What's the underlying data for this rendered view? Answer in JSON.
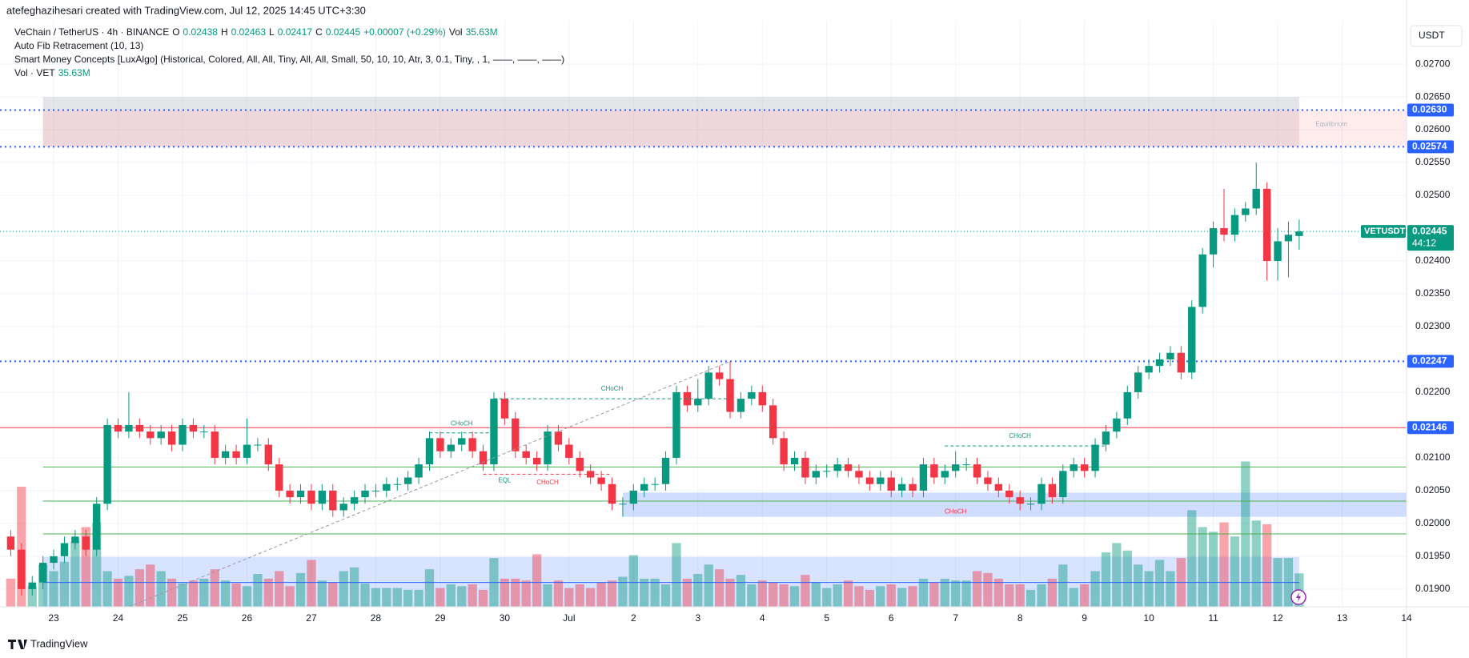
{
  "chart_data": {
    "type": "candlestick",
    "watermark": "atefeghazihesari created with TradingView.com, Jul 12, 2025 14:45 UTC+3:30",
    "legend": [
      {
        "text": "VeChain / TetherUS · 4h · BINANCE",
        "color": "#131722"
      },
      {
        "text": "O",
        "color": "#131722"
      },
      {
        "text": "0.02438",
        "color": "#089981"
      },
      {
        "text": "H",
        "color": "#131722"
      },
      {
        "text": "0.02463",
        "color": "#089981"
      },
      {
        "text": "L",
        "color": "#131722"
      },
      {
        "text": "0.02417",
        "color": "#089981"
      },
      {
        "text": "C",
        "color": "#131722"
      },
      {
        "text": "0.02445",
        "color": "#089981"
      },
      {
        "text": "+0.00007 (+0.29%)",
        "color": "#089981"
      },
      {
        "text": "Vol",
        "color": "#131722"
      },
      {
        "text": "35.63M",
        "color": "#089981"
      }
    ],
    "indicators": [
      "Auto Fib Retracement (10, 13)",
      "Smart Money Concepts [LuxAlgo] (Historical, Colored, All, All, Tiny, All, All, Small, 50, 10, 10, Atr, 3, 0.1, Tiny, , 1, ——, ——, ——)"
    ],
    "volume_legend": [
      {
        "text": "Vol · VET",
        "color": "#131722"
      },
      {
        "text": "35.63M",
        "color": "#089981"
      }
    ],
    "currency": "USDT",
    "symbol": "VETUSDT",
    "countdown": "44:12",
    "footer": "TradingView",
    "last_price": {
      "value": 0.02445,
      "label": "0.02445",
      "color": "#089981"
    },
    "up_color": "#089981",
    "down_color": "#f23645",
    "volume_up_color": "rgba(8,153,129,0.45)",
    "volume_down_color": "rgba(242,54,69,0.45)",
    "xlim": [
      -1,
      130
    ],
    "ylim": [
      0.01873,
      0.02766
    ],
    "grid": true,
    "xticks": [
      {
        "value": 4,
        "label": "23"
      },
      {
        "value": 10,
        "label": "24"
      },
      {
        "value": 16,
        "label": "25"
      },
      {
        "value": 22,
        "label": "26"
      },
      {
        "value": 28,
        "label": "27"
      },
      {
        "value": 34,
        "label": "28"
      },
      {
        "value": 40,
        "label": "29"
      },
      {
        "value": 46,
        "label": "30"
      },
      {
        "value": 52,
        "label": "Jul"
      },
      {
        "value": 58,
        "label": "2"
      },
      {
        "value": 64,
        "label": "3"
      },
      {
        "value": 70,
        "label": "4"
      },
      {
        "value": 76,
        "label": "5"
      },
      {
        "value": 82,
        "label": "6"
      },
      {
        "value": 88,
        "label": "7"
      },
      {
        "value": 94,
        "label": "8"
      },
      {
        "value": 100,
        "label": "9"
      },
      {
        "value": 106,
        "label": "10"
      },
      {
        "value": 112,
        "label": "11"
      },
      {
        "value": 118,
        "label": "12"
      },
      {
        "value": 124,
        "label": "13"
      },
      {
        "value": 130,
        "label": "14"
      }
    ],
    "yticks": [
      {
        "value": 0.027,
        "label": "0.02700"
      },
      {
        "value": 0.0265,
        "label": "0.02650"
      },
      {
        "value": 0.026,
        "label": "0.02600"
      },
      {
        "value": 0.0255,
        "label": "0.02550"
      },
      {
        "value": 0.025,
        "label": "0.02500"
      },
      {
        "value": 0.024,
        "label": "0.02400"
      },
      {
        "value": 0.0235,
        "label": "0.02350"
      },
      {
        "value": 0.023,
        "label": "0.02300"
      },
      {
        "value": 0.022,
        "label": "0.02200"
      },
      {
        "value": 0.021,
        "label": "0.02100"
      },
      {
        "value": 0.0205,
        "label": "0.02050"
      },
      {
        "value": 0.02,
        "label": "0.02000"
      },
      {
        "value": 0.0195,
        "label": "0.01950"
      },
      {
        "value": 0.019,
        "label": "0.01900"
      }
    ],
    "open": [
      0.0198,
      0.0196,
      0.019,
      0.0191,
      0.0194,
      0.0195,
      0.0197,
      0.0198,
      0.0196,
      0.0203,
      0.0215,
      0.0214,
      0.0215,
      0.0214,
      0.0213,
      0.0214,
      0.0212,
      0.0215,
      0.0214,
      0.0214,
      0.021,
      0.0211,
      0.021,
      0.0212,
      0.0212,
      0.0209,
      0.0205,
      0.0204,
      0.0205,
      0.0203,
      0.0205,
      0.0202,
      0.0203,
      0.0204,
      0.0205,
      0.0205,
      0.0206,
      0.0206,
      0.0207,
      0.0209,
      0.0213,
      0.0211,
      0.0212,
      0.0213,
      0.0211,
      0.0209,
      0.0219,
      0.0216,
      0.0211,
      0.021,
      0.0209,
      0.0214,
      0.0212,
      0.021,
      0.0208,
      0.0207,
      0.0206,
      0.0203,
      0.0203,
      0.0205,
      0.0206,
      0.0206,
      0.021,
      0.022,
      0.0218,
      0.0219,
      0.0223,
      0.0222,
      0.0217,
      0.0219,
      0.022,
      0.0218,
      0.0213,
      0.0209,
      0.021,
      0.0207,
      0.0208,
      0.0208,
      0.0209,
      0.0208,
      0.0207,
      0.0206,
      0.0207,
      0.0205,
      0.0206,
      0.0205,
      0.0209,
      0.0207,
      0.0208,
      0.0209,
      0.0209,
      0.0207,
      0.0206,
      0.0205,
      0.0204,
      0.0203,
      0.0203,
      0.0206,
      0.0204,
      0.0208,
      0.0209,
      0.0208,
      0.0212,
      0.0214,
      0.0216,
      0.022,
      0.0223,
      0.0224,
      0.0225,
      0.0226,
      0.0223,
      0.0233,
      0.0241,
      0.0245,
      0.0244,
      0.0247,
      0.0248,
      0.0251,
      0.024,
      0.0243,
      0.02438
    ],
    "high": [
      0.0199,
      0.0197,
      0.0192,
      0.0195,
      0.0196,
      0.0198,
      0.0199,
      0.0199,
      0.0204,
      0.0216,
      0.0216,
      0.022,
      0.0216,
      0.0215,
      0.0215,
      0.0215,
      0.0216,
      0.0216,
      0.0215,
      0.0215,
      0.0212,
      0.0212,
      0.0216,
      0.0213,
      0.0213,
      0.021,
      0.0206,
      0.0206,
      0.0206,
      0.0206,
      0.0206,
      0.0204,
      0.0205,
      0.0206,
      0.0206,
      0.0207,
      0.0207,
      0.0208,
      0.021,
      0.0214,
      0.0214,
      0.0213,
      0.0214,
      0.0214,
      0.0212,
      0.022,
      0.022,
      0.0217,
      0.0212,
      0.0211,
      0.0215,
      0.0215,
      0.0213,
      0.0211,
      0.0209,
      0.0208,
      0.0207,
      0.0204,
      0.0206,
      0.0207,
      0.0207,
      0.0211,
      0.0221,
      0.0221,
      0.0222,
      0.0224,
      0.0224,
      0.02247,
      0.022,
      0.0221,
      0.0221,
      0.0219,
      0.0214,
      0.0211,
      0.0211,
      0.0209,
      0.0209,
      0.021,
      0.021,
      0.0209,
      0.0208,
      0.0208,
      0.0208,
      0.0207,
      0.0207,
      0.021,
      0.021,
      0.0209,
      0.0211,
      0.021,
      0.021,
      0.0208,
      0.0207,
      0.0206,
      0.0205,
      0.0204,
      0.0207,
      0.0207,
      0.0209,
      0.021,
      0.021,
      0.0213,
      0.0215,
      0.0217,
      0.0221,
      0.0224,
      0.0225,
      0.0226,
      0.0227,
      0.0227,
      0.0234,
      0.0242,
      0.0246,
      0.0251,
      0.0248,
      0.0249,
      0.0255,
      0.0252,
      0.0245,
      0.0246,
      0.02463
    ],
    "low": [
      0.0195,
      0.0189,
      0.0189,
      0.019,
      0.0193,
      0.0194,
      0.0196,
      0.0195,
      0.0195,
      0.0202,
      0.0213,
      0.0213,
      0.0213,
      0.0212,
      0.0212,
      0.0211,
      0.0211,
      0.0213,
      0.0213,
      0.0209,
      0.0209,
      0.0209,
      0.0209,
      0.0211,
      0.0208,
      0.0204,
      0.0203,
      0.0203,
      0.0202,
      0.0202,
      0.0201,
      0.0201,
      0.0202,
      0.0203,
      0.0204,
      0.0204,
      0.0205,
      0.0205,
      0.0206,
      0.0208,
      0.021,
      0.021,
      0.0211,
      0.021,
      0.0208,
      0.0208,
      0.0215,
      0.021,
      0.0209,
      0.0208,
      0.0208,
      0.0211,
      0.0209,
      0.0207,
      0.0206,
      0.0205,
      0.0202,
      0.0201,
      0.0202,
      0.0204,
      0.0205,
      0.0205,
      0.0209,
      0.0217,
      0.0217,
      0.0218,
      0.0221,
      0.0216,
      0.0216,
      0.0218,
      0.0217,
      0.0212,
      0.0208,
      0.0208,
      0.0206,
      0.0206,
      0.0207,
      0.0207,
      0.0207,
      0.0206,
      0.0205,
      0.0205,
      0.0204,
      0.0204,
      0.0204,
      0.0204,
      0.0206,
      0.0206,
      0.0207,
      0.0208,
      0.0206,
      0.0205,
      0.0204,
      0.0203,
      0.0202,
      0.0202,
      0.0202,
      0.0203,
      0.0203,
      0.0207,
      0.0207,
      0.0207,
      0.0211,
      0.0213,
      0.0215,
      0.0219,
      0.0222,
      0.0223,
      0.0224,
      0.0222,
      0.0222,
      0.0232,
      0.0239,
      0.0243,
      0.0243,
      0.0246,
      0.0247,
      0.0237,
      0.0237,
      0.02375,
      0.02417
    ],
    "close": [
      0.0196,
      0.019,
      0.0191,
      0.0194,
      0.0195,
      0.0197,
      0.0198,
      0.0196,
      0.0203,
      0.0215,
      0.0214,
      0.0215,
      0.0214,
      0.0213,
      0.0214,
      0.0212,
      0.0215,
      0.0214,
      0.0214,
      0.021,
      0.0211,
      0.021,
      0.0212,
      0.0212,
      0.0209,
      0.0205,
      0.0204,
      0.0205,
      0.0203,
      0.0205,
      0.0202,
      0.0203,
      0.0204,
      0.0205,
      0.0205,
      0.0206,
      0.0206,
      0.0207,
      0.0209,
      0.0213,
      0.0211,
      0.0212,
      0.0213,
      0.0211,
      0.0209,
      0.0219,
      0.0216,
      0.0211,
      0.021,
      0.0209,
      0.0214,
      0.0212,
      0.021,
      0.0208,
      0.0207,
      0.0206,
      0.0203,
      0.0203,
      0.0205,
      0.0206,
      0.0206,
      0.021,
      0.022,
      0.0218,
      0.0219,
      0.0223,
      0.0222,
      0.0217,
      0.0219,
      0.022,
      0.0218,
      0.0213,
      0.0209,
      0.021,
      0.0207,
      0.0208,
      0.0208,
      0.0209,
      0.0208,
      0.0207,
      0.0206,
      0.0207,
      0.0205,
      0.0206,
      0.0205,
      0.0209,
      0.0207,
      0.0208,
      0.0209,
      0.0209,
      0.0207,
      0.0206,
      0.0205,
      0.0204,
      0.0203,
      0.0203,
      0.0206,
      0.0204,
      0.0208,
      0.0209,
      0.0208,
      0.0212,
      0.0214,
      0.0216,
      0.022,
      0.0223,
      0.0224,
      0.0225,
      0.0226,
      0.0223,
      0.0233,
      0.0241,
      0.0245,
      0.0244,
      0.0247,
      0.0248,
      0.0251,
      0.024,
      0.0243,
      0.0244,
      0.02445
    ],
    "volume": [
      30,
      128,
      22,
      45,
      38,
      48,
      70,
      85,
      90,
      38,
      30,
      33,
      40,
      45,
      38,
      30,
      25,
      28,
      30,
      40,
      28,
      25,
      22,
      35,
      30,
      38,
      22,
      36,
      50,
      28,
      26,
      38,
      42,
      25,
      20,
      20,
      20,
      18,
      18,
      40,
      20,
      24,
      22,
      24,
      18,
      52,
      30,
      30,
      28,
      56,
      24,
      28,
      20,
      24,
      20,
      26,
      28,
      32,
      55,
      30,
      30,
      24,
      68,
      30,
      35,
      45,
      40,
      30,
      34,
      24,
      28,
      26,
      24,
      22,
      34,
      26,
      20,
      24,
      28,
      22,
      18,
      22,
      24,
      20,
      22,
      30,
      26,
      30,
      28,
      28,
      38,
      36,
      30,
      24,
      24,
      18,
      24,
      30,
      45,
      20,
      24,
      38,
      58,
      68,
      60,
      45,
      38,
      50,
      38,
      52,
      103,
      85,
      80,
      90,
      75,
      155,
      92,
      88,
      52,
      52,
      35.63
    ],
    "zones": [
      {
        "from": 0.0265,
        "to": 0.0263,
        "x": [
          3,
          120
        ],
        "color": "rgba(178,181,190,0.35)"
      },
      {
        "from": 0.0263,
        "to": 0.02574,
        "x": [
          3,
          120
        ],
        "color": "rgba(205,140,150,0.35)"
      },
      {
        "from": 0.0263,
        "to": 0.02574,
        "x": [
          120,
          130
        ],
        "color": "rgba(242,54,69,0.1)"
      },
      {
        "from": 0.02047,
        "to": 0.0201,
        "x": [
          57,
          130
        ],
        "color": "rgba(41,98,255,0.22)"
      },
      {
        "from": 0.01949,
        "to": 0.01873,
        "x": [
          3,
          120
        ],
        "color": "rgba(41,98,255,0.18)"
      }
    ],
    "levels": [
      {
        "value": 0.0263,
        "label": "0.02630",
        "color": "#2962ff",
        "style": "dotted"
      },
      {
        "value": 0.02574,
        "label": "0.02574",
        "color": "#2962ff",
        "style": "dotted"
      },
      {
        "value": 0.02247,
        "label": "0.02247",
        "color": "#2962ff",
        "style": "dotted"
      },
      {
        "value": 0.02146,
        "label": "0.02146",
        "color": "#f23645",
        "style": "solid"
      }
    ],
    "lines": [
      {
        "value": 0.02086,
        "x": [
          3,
          130
        ],
        "color": "#4caf50"
      },
      {
        "value": 0.02034,
        "x": [
          3,
          130
        ],
        "color": "#4caf50"
      },
      {
        "value": 0.01984,
        "x": [
          3,
          130
        ],
        "color": "#4caf50"
      },
      {
        "value": 0.0191,
        "x": [
          3,
          120
        ],
        "color": "#2962ff"
      }
    ],
    "segments": [
      {
        "x": [
          39,
          45
        ],
        "y": [
          0.02138,
          0.02138
        ],
        "color": "#089981"
      },
      {
        "x": [
          45,
          67
        ],
        "y": [
          0.0219,
          0.0219
        ],
        "color": "#089981"
      },
      {
        "x": [
          44,
          56
        ],
        "y": [
          0.02075,
          0.02075
        ],
        "color": "#f23645"
      },
      {
        "x": [
          87,
          102
        ],
        "y": [
          0.02118,
          0.02118
        ],
        "color": "#089981"
      },
      {
        "x": [
          11,
          67
        ],
        "y": [
          0.01873,
          0.02247
        ],
        "color": "#9598a1"
      }
    ],
    "annotations": [
      {
        "text": "CHoCH",
        "x": 42,
        "y": 0.02152,
        "color": "#089981"
      },
      {
        "text": "CHoCH",
        "x": 56,
        "y": 0.02205,
        "color": "#089981"
      },
      {
        "text": "EQL",
        "x": 46,
        "y": 0.02065,
        "color": "#089981"
      },
      {
        "text": "CHoCH",
        "x": 50,
        "y": 0.02062,
        "color": "#f23645"
      },
      {
        "text": "CHoCH",
        "x": 94,
        "y": 0.02133,
        "color": "#089981"
      },
      {
        "text": "CHoCH",
        "x": 88,
        "y": 0.02018,
        "color": "#f23645"
      },
      {
        "text": "Equilibrium",
        "x": 123,
        "y": 0.02608,
        "color": "#b2b5be"
      }
    ]
  }
}
